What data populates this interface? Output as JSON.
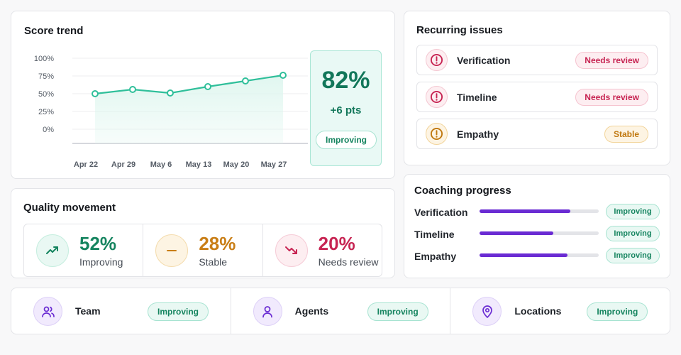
{
  "score_trend": {
    "title": "Score trend",
    "kpi_value": "82%",
    "kpi_delta": "+6 pts",
    "kpi_status": "Improving",
    "chart_data": {
      "type": "area",
      "x": [
        "Apr 22",
        "Apr 29",
        "May 6",
        "May 13",
        "May 20",
        "May 27"
      ],
      "values": [
        50,
        56,
        51,
        60,
        68,
        76
      ],
      "yticks": [
        "100%",
        "75%",
        "50%",
        "25%",
        "0%"
      ],
      "ylim": [
        0,
        100
      ],
      "grid": true,
      "colors": {
        "line": "#2fbf9a",
        "fill": "#dff6ef"
      }
    }
  },
  "recurring_issues": {
    "title": "Recurring issues",
    "items": [
      {
        "label": "Verification",
        "status": "Needs review",
        "tone": "red",
        "icon": "alert-circle-icon"
      },
      {
        "label": "Timeline",
        "status": "Needs review",
        "tone": "red",
        "icon": "alert-circle-icon"
      },
      {
        "label": "Empathy",
        "status": "Stable",
        "tone": "amber",
        "icon": "alert-circle-icon"
      }
    ]
  },
  "quality_movement": {
    "title": "Quality movement",
    "cells": [
      {
        "value": "52%",
        "label": "Improving",
        "tone": "green",
        "color": "#15845f",
        "icon": "trend-up-icon"
      },
      {
        "value": "28%",
        "label": "Stable",
        "tone": "amber",
        "color": "#c97e16",
        "icon": "minus-icon"
      },
      {
        "value": "20%",
        "label": "Needs review",
        "tone": "red",
        "color": "#c72553",
        "icon": "trend-down-icon"
      }
    ]
  },
  "coaching_progress": {
    "title": "Coaching progress",
    "rows": [
      {
        "label": "Verification",
        "progress": 0.76,
        "status": "Improving"
      },
      {
        "label": "Timeline",
        "progress": 0.62,
        "status": "Improving"
      },
      {
        "label": "Empathy",
        "progress": 0.74,
        "status": "Improving"
      }
    ],
    "bar_color": "#6a2bd3"
  },
  "segments": [
    {
      "label": "Team",
      "status": "Improving",
      "icon": "users-icon"
    },
    {
      "label": "Agents",
      "status": "Improving",
      "icon": "user-icon"
    },
    {
      "label": "Locations",
      "status": "Improving",
      "icon": "map-pin-icon"
    }
  ]
}
